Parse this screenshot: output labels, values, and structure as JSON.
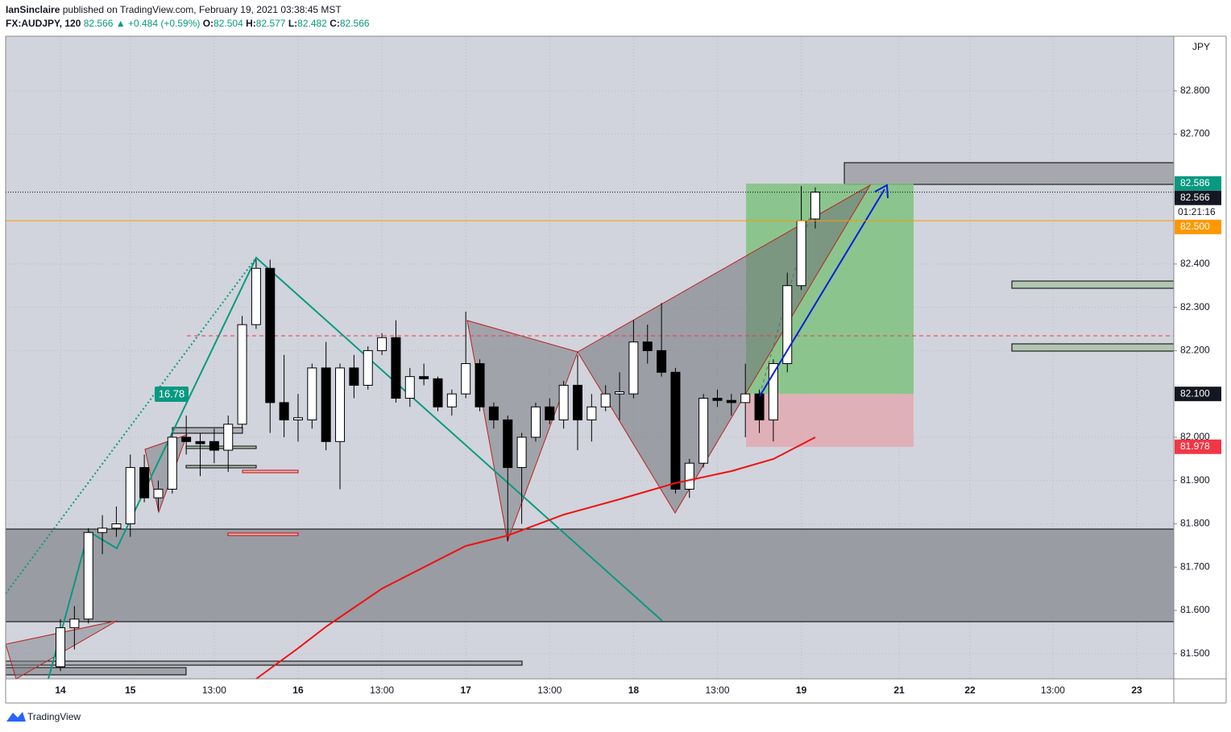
{
  "header": {
    "author": "IanSinclaire",
    "published": "published on TradingView.com, February 19, 2021 03:38:45 MST",
    "symbol": "FX:AUDJPY, 120",
    "change": "▲ +0.484 (+0.59%)",
    "ohlc_prefixes": [
      "O:",
      "H:",
      "L:",
      "C:"
    ]
  },
  "chart_data": {
    "type": "candlestick",
    "axis_unit": "JPY",
    "annotation": "16.78",
    "countdown": "01:21:16",
    "up_color": "#ffffff",
    "down_color": "#000000",
    "grid": true,
    "open": [
      81.47,
      81.56,
      81.58,
      81.78,
      81.79,
      81.8,
      81.93,
      81.86,
      81.88,
      82.0,
      81.99,
      81.99,
      81.97,
      82.03,
      82.26,
      82.39,
      82.08,
      82.04,
      82.04,
      82.16,
      81.99,
      82.16,
      82.12,
      82.2,
      82.23,
      82.09,
      82.14,
      82.135,
      82.07,
      82.1,
      82.17,
      82.07,
      82.04,
      81.93,
      82.0,
      82.07,
      82.04,
      82.12,
      82.04,
      82.07,
      82.1,
      82.1,
      82.22,
      82.2,
      82.15,
      81.88,
      81.94,
      82.09,
      82.085,
      82.08,
      82.1,
      82.04,
      82.17,
      82.35,
      82.504
    ],
    "high": [
      81.58,
      81.61,
      81.79,
      81.82,
      81.84,
      81.96,
      81.96,
      81.9,
      82.01,
      82.05,
      82.01,
      82.02,
      82.05,
      82.28,
      82.41,
      82.41,
      82.19,
      82.1,
      82.17,
      82.22,
      82.17,
      82.19,
      82.21,
      82.24,
      82.27,
      82.16,
      82.17,
      82.14,
      82.11,
      82.29,
      82.18,
      82.08,
      82.05,
      82.01,
      82.08,
      82.09,
      82.13,
      82.19,
      82.1,
      82.12,
      82.15,
      82.27,
      82.26,
      82.31,
      82.16,
      81.95,
      82.1,
      82.11,
      82.1,
      82.17,
      82.11,
      82.18,
      82.38,
      82.58,
      82.577
    ],
    "low": [
      81.46,
      81.51,
      81.57,
      81.73,
      81.77,
      81.77,
      81.85,
      81.83,
      81.87,
      81.96,
      81.91,
      81.94,
      81.92,
      82.02,
      82.25,
      82.01,
      82.0,
      81.99,
      82.02,
      81.97,
      81.88,
      82.09,
      82.11,
      82.19,
      82.08,
      82.07,
      82.12,
      82.06,
      82.05,
      82.09,
      82.06,
      82.02,
      81.76,
      81.8,
      81.99,
      82.03,
      82.02,
      81.97,
      81.99,
      82.06,
      82.04,
      82.09,
      82.17,
      82.14,
      81.87,
      81.86,
      81.93,
      82.07,
      82.05,
      82.0,
      82.01,
      81.99,
      82.15,
      82.34,
      82.482
    ],
    "close": [
      81.56,
      81.58,
      81.78,
      81.79,
      81.8,
      81.93,
      81.86,
      81.88,
      82.0,
      81.99,
      81.985,
      81.97,
      82.03,
      82.26,
      82.39,
      82.08,
      82.04,
      82.045,
      82.16,
      81.99,
      82.16,
      82.12,
      82.2,
      82.23,
      82.09,
      82.14,
      82.135,
      82.07,
      82.1,
      82.17,
      82.07,
      82.04,
      81.93,
      82.0,
      82.07,
      82.04,
      82.12,
      82.04,
      82.07,
      82.1,
      82.105,
      82.22,
      82.2,
      82.15,
      81.88,
      81.94,
      82.09,
      82.085,
      82.08,
      82.1,
      82.04,
      82.17,
      82.35,
      82.5,
      82.566
    ],
    "xlim": [
      -3.92,
      79.65
    ],
    "xticks": [
      {
        "value": 0,
        "label": "14"
      },
      {
        "value": 5,
        "label": "15"
      },
      {
        "value": 11,
        "label": "13:00"
      },
      {
        "value": 17,
        "label": "16"
      },
      {
        "value": 23,
        "label": "13:00"
      },
      {
        "value": 29,
        "label": "17"
      },
      {
        "value": 35,
        "label": "13:00"
      },
      {
        "value": 41,
        "label": "18"
      },
      {
        "value": 47,
        "label": "13:00"
      },
      {
        "value": 53,
        "label": "19"
      },
      {
        "value": 60,
        "label": "21"
      },
      {
        "value": 65.07,
        "label": "22"
      },
      {
        "value": 71,
        "label": "13:00"
      },
      {
        "value": 77,
        "label": "23"
      }
    ],
    "ylim": [
      81.442,
      82.926
    ],
    "yticks": [
      {
        "value": 81.5,
        "label": "81.500"
      },
      {
        "value": 81.6,
        "label": "81.600"
      },
      {
        "value": 81.7,
        "label": "81.700"
      },
      {
        "value": 81.8,
        "label": "81.800"
      },
      {
        "value": 81.9,
        "label": "81.900"
      },
      {
        "value": 82.0,
        "label": "82.000"
      },
      {
        "value": 82.2,
        "label": "82.200"
      },
      {
        "value": 82.3,
        "label": "82.300"
      },
      {
        "value": 82.4,
        "label": "82.400"
      },
      {
        "value": 82.7,
        "label": "82.700"
      },
      {
        "value": 82.8,
        "label": "82.800"
      }
    ],
    "price_labels": [
      {
        "value": 82.586,
        "label": "82.586",
        "color": "#089981"
      },
      {
        "value": 82.5,
        "label": "82.500",
        "color": "#ff9800"
      },
      {
        "value": 82.1,
        "label": "82.100",
        "color": "#131722"
      },
      {
        "value": 81.978,
        "label": "81.978",
        "color": "#f23645"
      }
    ]
  },
  "footer": {
    "brand": "TradingView"
  }
}
